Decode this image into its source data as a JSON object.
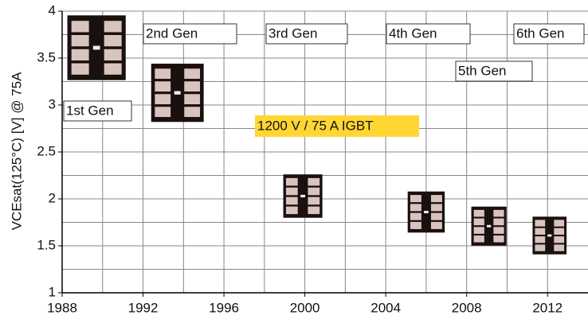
{
  "chart_data": {
    "type": "scatter",
    "ylabel": "VCEsat(125°C) [V] @ 75A",
    "annotation": "1200 V / 75 A IGBT",
    "labels": [
      "1st Gen",
      "2nd Gen",
      "3rd Gen",
      "4th Gen",
      "5th Gen",
      "6th Gen"
    ],
    "x": [
      1989.7,
      1993.7,
      1999.9,
      2006.0,
      2009.1,
      2012.1
    ],
    "values": [
      3.61,
      3.13,
      2.03,
      1.86,
      1.71,
      1.61
    ],
    "xlim": [
      1988,
      2014
    ],
    "xticks": [
      1988,
      1992,
      1996,
      2000,
      2004,
      2008,
      2012
    ],
    "xminor": [
      1990,
      1994,
      1998,
      2002,
      2006,
      2010
    ],
    "ylim": [
      1,
      4
    ],
    "yticks": [
      1,
      1.5,
      2,
      2.5,
      3,
      3.5,
      4
    ],
    "yminor": [
      1.25,
      1.75,
      2.25,
      2.75,
      3.25,
      3.75
    ],
    "grid": true
  }
}
